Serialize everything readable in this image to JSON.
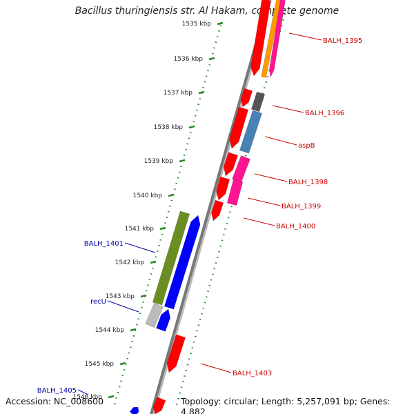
{
  "title": "Bacillus thuringiensis str. Al Hakam, complete genome",
  "accession": "Accession: NC_008600",
  "summary": "Topology: circular; Length: 5,257,091 bp; Genes: 4,882",
  "ticks": [
    "1535 kbp",
    "1536 kbp",
    "1537 kbp",
    "1538 kbp",
    "1539 kbp",
    "1540 kbp",
    "1541 kbp",
    "1542 kbp",
    "1543 kbp",
    "1544 kbp",
    "1545 kbp",
    "1546 kbp"
  ],
  "labels": {
    "right": [
      "BALH_1395",
      "BALH_1396",
      "aspB",
      "BALH_1398",
      "BALH_1399",
      "BALH_1400",
      "BALH_1403"
    ],
    "left": [
      "BALH_1401",
      "recU",
      "BALH_1405"
    ]
  },
  "colors": {
    "red": "#ff0000",
    "blue": "#0000ff",
    "green": "#6b8e23",
    "pink": "#ff1493",
    "orange": "#ff9900",
    "steel": "#4682b4",
    "gray": "#555555",
    "lightgray": "#bbbbbb",
    "backbone": "#777777",
    "tick": "#228b22",
    "label_red": "#cc0000",
    "label_blue": "#0000aa"
  }
}
